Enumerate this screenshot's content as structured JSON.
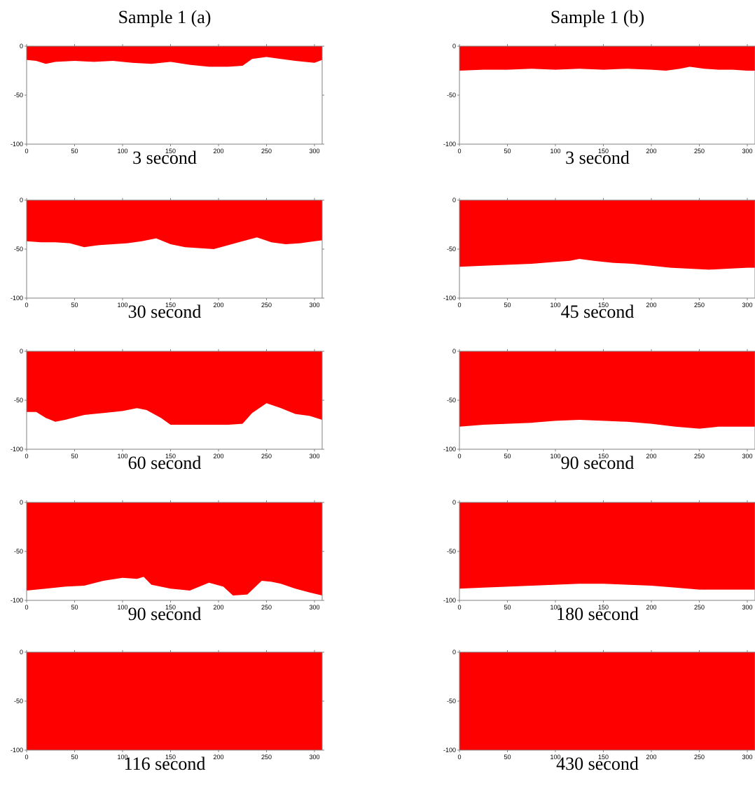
{
  "columns": [
    {
      "title": "Sample 1 (a)"
    },
    {
      "title": "Sample 1 (b)"
    }
  ],
  "colors": {
    "fill": "#ff0000",
    "background": "#ffffff",
    "axis": "#808080"
  },
  "chart_data": [
    {
      "type": "area",
      "sample": "Sample 1 (a)",
      "caption": "3 second",
      "xlim": [
        0,
        308
      ],
      "ylim": [
        -100,
        0
      ],
      "xticks": [
        0,
        50,
        100,
        150,
        200,
        250,
        300
      ],
      "yticks": [
        0,
        -50,
        -100
      ],
      "x": [
        0,
        10,
        20,
        30,
        50,
        70,
        90,
        110,
        130,
        150,
        170,
        190,
        210,
        225,
        235,
        250,
        265,
        280,
        290,
        300,
        308
      ],
      "y": [
        -14,
        -15,
        -18,
        -16,
        -15,
        -16,
        -15,
        -17,
        -18,
        -16,
        -19,
        -21,
        -21,
        -20,
        -13,
        -11,
        -13,
        -15,
        -16,
        -17,
        -14
      ]
    },
    {
      "type": "area",
      "sample": "Sample 1 (b)",
      "caption": "3 second",
      "xlim": [
        0,
        308
      ],
      "ylim": [
        -100,
        0
      ],
      "xticks": [
        0,
        50,
        100,
        150,
        200,
        250,
        300
      ],
      "yticks": [
        0,
        -50,
        -100
      ],
      "x": [
        0,
        25,
        50,
        75,
        100,
        125,
        150,
        175,
        200,
        215,
        230,
        240,
        255,
        270,
        285,
        300,
        308
      ],
      "y": [
        -25,
        -24,
        -24,
        -23,
        -24,
        -23,
        -24,
        -23,
        -24,
        -25,
        -23,
        -21,
        -23,
        -24,
        -24,
        -25,
        -25
      ]
    },
    {
      "type": "area",
      "sample": "Sample 1 (a)",
      "caption": "30 second",
      "xlim": [
        0,
        308
      ],
      "ylim": [
        -100,
        0
      ],
      "xticks": [
        0,
        50,
        100,
        150,
        200,
        250,
        300
      ],
      "yticks": [
        0,
        -50,
        -100
      ],
      "x": [
        0,
        15,
        30,
        45,
        60,
        75,
        90,
        105,
        120,
        135,
        150,
        165,
        180,
        195,
        210,
        225,
        240,
        255,
        270,
        285,
        300,
        308
      ],
      "y": [
        -42,
        -43,
        -43,
        -44,
        -48,
        -46,
        -45,
        -44,
        -42,
        -39,
        -45,
        -48,
        -49,
        -50,
        -46,
        -42,
        -38,
        -43,
        -45,
        -44,
        -42,
        -41
      ]
    },
    {
      "type": "area",
      "sample": "Sample 1 (b)",
      "caption": "45 second",
      "xlim": [
        0,
        308
      ],
      "ylim": [
        -100,
        0
      ],
      "xticks": [
        0,
        50,
        100,
        150,
        200,
        250,
        300
      ],
      "yticks": [
        0,
        -50,
        -100
      ],
      "x": [
        0,
        25,
        50,
        75,
        100,
        115,
        125,
        140,
        160,
        180,
        200,
        220,
        240,
        260,
        280,
        300,
        308
      ],
      "y": [
        -68,
        -67,
        -66,
        -65,
        -63,
        -62,
        -60,
        -62,
        -64,
        -65,
        -67,
        -69,
        -70,
        -71,
        -70,
        -69,
        -69
      ]
    },
    {
      "type": "area",
      "sample": "Sample 1 (a)",
      "caption": "60 second",
      "xlim": [
        0,
        308
      ],
      "ylim": [
        -100,
        0
      ],
      "xticks": [
        0,
        50,
        100,
        150,
        200,
        250,
        300
      ],
      "yticks": [
        0,
        -50,
        -100
      ],
      "x": [
        0,
        10,
        20,
        30,
        40,
        60,
        80,
        100,
        115,
        125,
        140,
        150,
        170,
        190,
        210,
        225,
        235,
        250,
        265,
        280,
        295,
        308
      ],
      "y": [
        -62,
        -62,
        -68,
        -72,
        -70,
        -65,
        -63,
        -61,
        -58,
        -60,
        -68,
        -75,
        -75,
        -75,
        -75,
        -74,
        -63,
        -53,
        -58,
        -64,
        -66,
        -70
      ]
    },
    {
      "type": "area",
      "sample": "Sample 1 (b)",
      "caption": "90 second",
      "xlim": [
        0,
        308
      ],
      "ylim": [
        -100,
        0
      ],
      "xticks": [
        0,
        50,
        100,
        150,
        200,
        250,
        300
      ],
      "yticks": [
        0,
        -50,
        -100
      ],
      "x": [
        0,
        25,
        50,
        75,
        100,
        125,
        150,
        175,
        200,
        225,
        250,
        270,
        290,
        308
      ],
      "y": [
        -77,
        -75,
        -74,
        -73,
        -71,
        -70,
        -71,
        -72,
        -74,
        -77,
        -79,
        -77,
        -77,
        -77
      ]
    },
    {
      "type": "area",
      "sample": "Sample 1 (a)",
      "caption": "90 second",
      "xlim": [
        0,
        308
      ],
      "ylim": [
        -100,
        0
      ],
      "xticks": [
        0,
        50,
        100,
        150,
        200,
        250,
        300
      ],
      "yticks": [
        0,
        -50,
        -100
      ],
      "x": [
        0,
        20,
        40,
        60,
        80,
        100,
        115,
        122,
        130,
        150,
        170,
        190,
        205,
        215,
        230,
        245,
        255,
        265,
        280,
        295,
        308
      ],
      "y": [
        -90,
        -88,
        -86,
        -85,
        -80,
        -77,
        -78,
        -76,
        -84,
        -88,
        -90,
        -82,
        -86,
        -95,
        -94,
        -80,
        -81,
        -83,
        -88,
        -92,
        -95
      ]
    },
    {
      "type": "area",
      "sample": "Sample 1 (b)",
      "caption": "180 second",
      "xlim": [
        0,
        308
      ],
      "ylim": [
        -100,
        0
      ],
      "xticks": [
        0,
        50,
        100,
        150,
        200,
        250,
        300
      ],
      "yticks": [
        0,
        -50,
        -100
      ],
      "x": [
        0,
        25,
        50,
        75,
        100,
        125,
        150,
        175,
        200,
        225,
        250,
        275,
        300,
        308
      ],
      "y": [
        -88,
        -87,
        -86,
        -85,
        -84,
        -83,
        -83,
        -84,
        -85,
        -87,
        -89,
        -89,
        -89,
        -89
      ]
    },
    {
      "type": "area",
      "sample": "Sample 1 (a)",
      "caption": "116 second",
      "xlim": [
        0,
        308
      ],
      "ylim": [
        -100,
        0
      ],
      "xticks": [
        0,
        50,
        100,
        150,
        200,
        250,
        300
      ],
      "yticks": [
        0,
        -50,
        -100
      ],
      "x": [
        0,
        308
      ],
      "y": [
        -100,
        -100
      ]
    },
    {
      "type": "area",
      "sample": "Sample 1 (b)",
      "caption": "430 second",
      "xlim": [
        0,
        308
      ],
      "ylim": [
        -100,
        0
      ],
      "xticks": [
        0,
        50,
        100,
        150,
        200,
        250,
        300
      ],
      "yticks": [
        0,
        -50,
        -100
      ],
      "x": [
        0,
        308
      ],
      "y": [
        -100,
        -100
      ]
    }
  ]
}
